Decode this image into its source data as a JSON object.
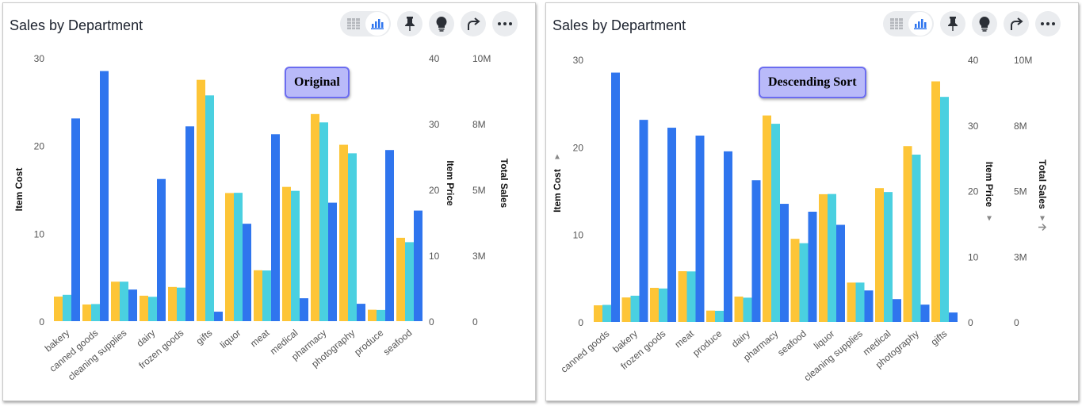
{
  "colors": {
    "item_cost": "#fdc537",
    "item_price": "#4ad0e0",
    "total_sales": "#2f75ee"
  },
  "toolbar": {
    "icons": [
      "table-icon",
      "bar-chart-icon",
      "pin-icon",
      "lightbulb-icon",
      "share-icon",
      "more-icon"
    ]
  },
  "chart_data": [
    {
      "type": "bar",
      "title": "Sales by Department",
      "annotation": "Original",
      "categories": [
        "bakery",
        "canned goods",
        "cleaning supplies",
        "dairy",
        "frozen goods",
        "gifts",
        "liquor",
        "meat",
        "medical",
        "pharmacy",
        "photography",
        "produce",
        "seafood"
      ],
      "series": [
        {
          "name": "Item Cost",
          "axis": "left",
          "values": [
            2.8,
            1.9,
            4.5,
            2.9,
            3.9,
            27.5,
            14.6,
            5.8,
            15.3,
            23.6,
            20.1,
            1.3,
            9.5
          ]
        },
        {
          "name": "Item Price",
          "axis": "right1",
          "values": [
            4.0,
            2.6,
            6.0,
            3.7,
            5.1,
            34.3,
            19.5,
            7.7,
            19.8,
            30.2,
            25.5,
            1.7,
            12.0
          ]
        },
        {
          "name": "Total Sales",
          "axis": "right2",
          "values": [
            7.7,
            9.5,
            1.2,
            5.4,
            7.4,
            0.36,
            3.7,
            7.1,
            0.87,
            4.5,
            0.66,
            6.5,
            4.2
          ]
        }
      ],
      "axes": {
        "left": {
          "label": "Item Cost",
          "range": [
            0,
            30
          ],
          "ticks": [
            "0",
            "10",
            "20",
            "30"
          ]
        },
        "right1": {
          "label": "Item Price",
          "range": [
            0,
            40
          ],
          "ticks": [
            "0",
            "10",
            "20",
            "30",
            "40"
          ]
        },
        "right2": {
          "label": "Total Sales",
          "unit": "M",
          "range": [
            0,
            10
          ],
          "ticks": [
            "0",
            "3M",
            "5M",
            "8M",
            "10M"
          ]
        }
      },
      "grid": false
    },
    {
      "type": "bar",
      "title": "Sales by Department",
      "annotation": "Descending Sort",
      "sorted_by": "Total Sales",
      "sort_order": "descending",
      "categories": [
        "canned goods",
        "bakery",
        "frozen goods",
        "meat",
        "produce",
        "dairy",
        "pharmacy",
        "seafood",
        "liquor",
        "cleaning supplies",
        "medical",
        "photography",
        "gifts"
      ],
      "series": [
        {
          "name": "Item Cost",
          "axis": "left",
          "values": [
            1.9,
            2.8,
            3.9,
            5.8,
            1.3,
            2.9,
            23.6,
            9.5,
            14.6,
            4.5,
            15.3,
            20.1,
            27.5
          ]
        },
        {
          "name": "Item Price",
          "axis": "right1",
          "values": [
            2.6,
            4.0,
            5.1,
            7.7,
            1.7,
            3.7,
            30.2,
            12.0,
            19.5,
            6.0,
            19.8,
            25.5,
            34.3
          ]
        },
        {
          "name": "Total Sales",
          "axis": "right2",
          "values": [
            9.5,
            7.7,
            7.4,
            7.1,
            6.5,
            5.4,
            4.5,
            4.2,
            3.7,
            1.2,
            0.87,
            0.66,
            0.36
          ]
        }
      ],
      "axes": {
        "left": {
          "label": "Item Cost",
          "range": [
            0,
            30
          ],
          "ticks": [
            "0",
            "10",
            "20",
            "30"
          ]
        },
        "right1": {
          "label": "Item Price",
          "range": [
            0,
            40
          ],
          "ticks": [
            "0",
            "10",
            "20",
            "30",
            "40"
          ]
        },
        "right2": {
          "label": "Total Sales",
          "unit": "M",
          "range": [
            0,
            10
          ],
          "ticks": [
            "0",
            "3M",
            "5M",
            "8M",
            "10M"
          ]
        }
      },
      "grid": false
    }
  ]
}
